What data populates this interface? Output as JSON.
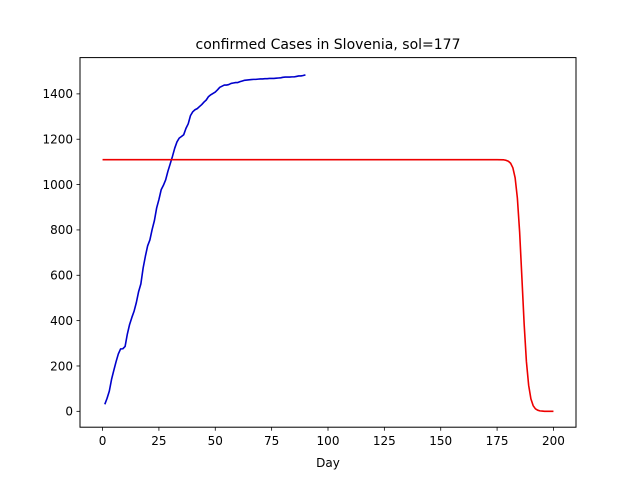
{
  "chart_data": {
    "type": "line",
    "title": "confirmed Cases in Slovenia, sol=177",
    "xlabel": "Day",
    "ylabel": "",
    "xlim": [
      -10,
      210
    ],
    "ylim": [
      -70,
      1560
    ],
    "x_ticks": [
      0,
      25,
      50,
      75,
      100,
      125,
      150,
      175,
      200
    ],
    "y_ticks": [
      0,
      200,
      400,
      600,
      800,
      1000,
      1200,
      1400
    ],
    "grid": false,
    "legend": "none",
    "series": [
      {
        "color": "#0000cc",
        "x": [
          1,
          2,
          3,
          4,
          5,
          6,
          7,
          8,
          9,
          10,
          11,
          12,
          13,
          14,
          15,
          16,
          17,
          18,
          19,
          20,
          21,
          22,
          23,
          24,
          25,
          26,
          27,
          28,
          29,
          30,
          31,
          32,
          33,
          34,
          35,
          36,
          37,
          38,
          39,
          40,
          41,
          42,
          43,
          44,
          45,
          46,
          47,
          48,
          49,
          50,
          51,
          52,
          53,
          54,
          55,
          56,
          57,
          58,
          59,
          60,
          61,
          62,
          63,
          64,
          65,
          66,
          67,
          68,
          69,
          70,
          71,
          72,
          73,
          74,
          75,
          76,
          77,
          78,
          79,
          80,
          81,
          82,
          83,
          84,
          85,
          86,
          87,
          88,
          89,
          90
        ],
        "y": [
          31,
          57,
          89,
          141,
          181,
          219,
          253,
          275,
          276,
          286,
          341,
          383,
          414,
          442,
          480,
          528,
          562,
          632,
          684,
          730,
          756,
          802,
          841,
          897,
          934,
          977,
          997,
          1021,
          1059,
          1091,
          1124,
          1160,
          1188,
          1205,
          1212,
          1220,
          1248,
          1268,
          1304,
          1321,
          1330,
          1335,
          1344,
          1353,
          1364,
          1373,
          1388,
          1396,
          1402,
          1408,
          1418,
          1429,
          1434,
          1439,
          1439,
          1441,
          1446,
          1448,
          1450,
          1450,
          1454,
          1457,
          1460,
          1461,
          1462,
          1463,
          1464,
          1464,
          1465,
          1466,
          1466,
          1467,
          1467,
          1468,
          1468,
          1468,
          1469,
          1470,
          1471,
          1473,
          1474,
          1474,
          1474,
          1475,
          1475,
          1477,
          1479,
          1479,
          1481,
          1484
        ]
      },
      {
        "color": "#ee0000",
        "x": [
          0,
          25,
          50,
          75,
          100,
          125,
          150,
          175,
          178,
          179,
          180,
          181,
          182,
          183,
          184,
          185,
          186,
          187,
          188,
          189,
          190,
          191,
          192,
          193,
          194,
          195,
          196,
          197,
          198,
          199,
          200
        ],
        "y": [
          1110,
          1110,
          1110,
          1110,
          1110,
          1110,
          1110,
          1110,
          1109,
          1107,
          1103,
          1094,
          1074,
          1030,
          940,
          790,
          590,
          385,
          220,
          115,
          55,
          25,
          11,
          5,
          2,
          1,
          0,
          0,
          0,
          0,
          0
        ]
      }
    ]
  }
}
